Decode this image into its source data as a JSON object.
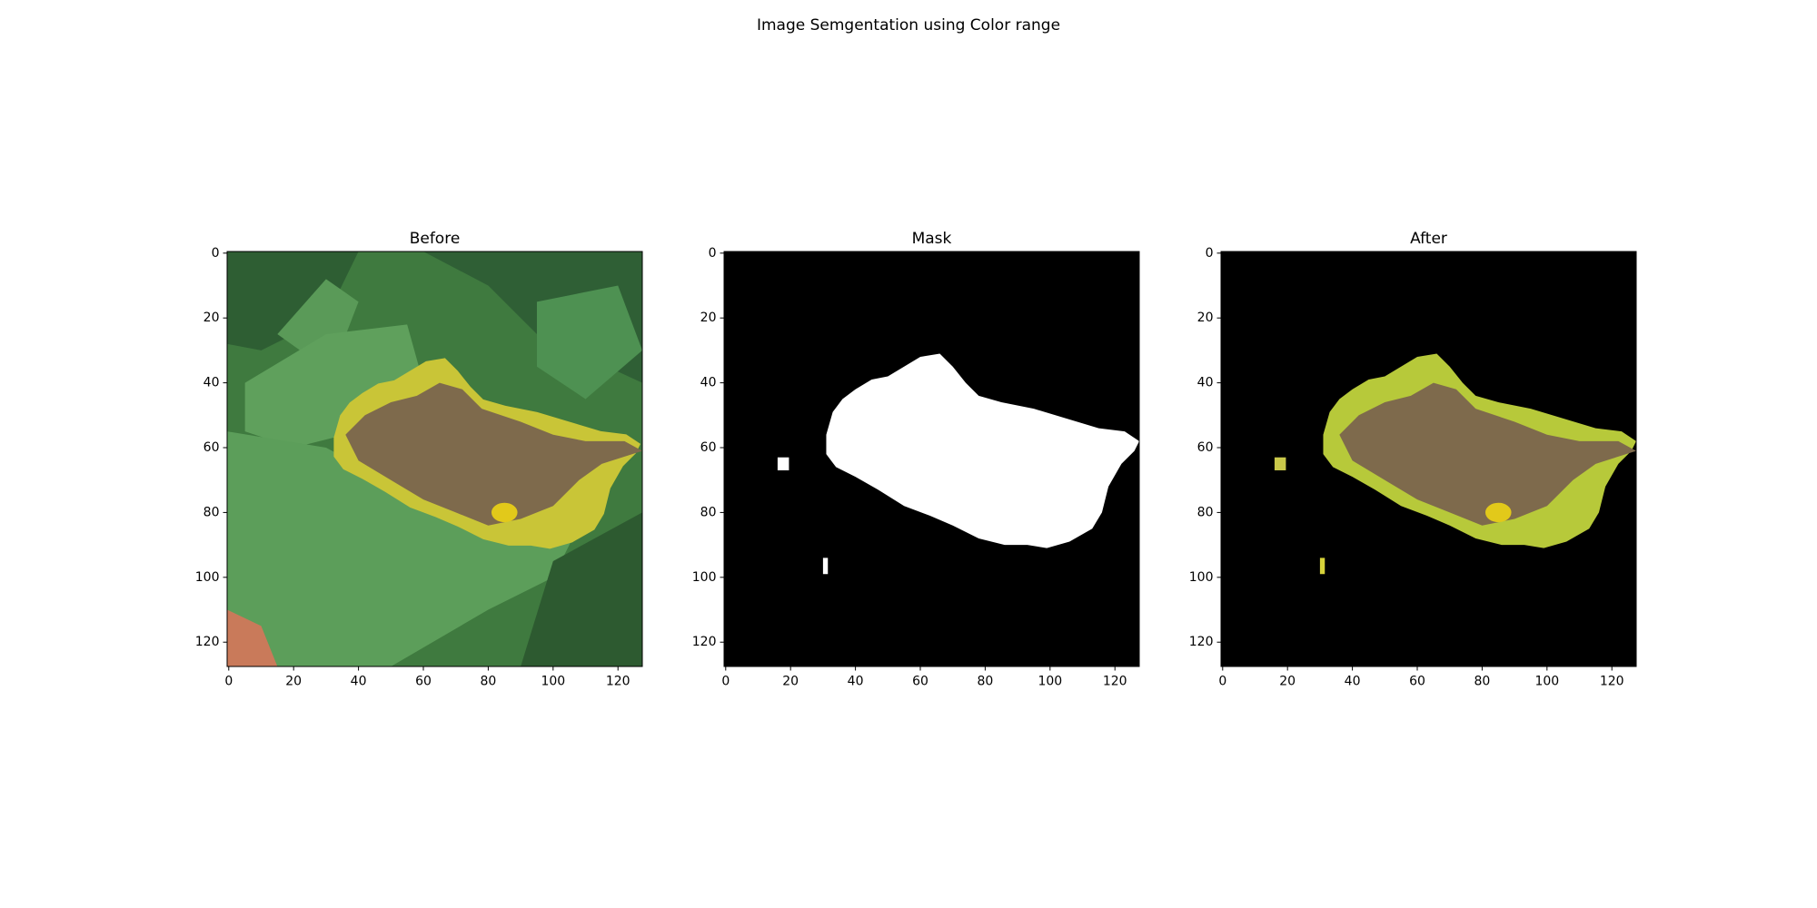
{
  "title": "Image Semgentation using Color range",
  "chart_data": [
    {
      "type": "image",
      "title": "Before",
      "xlim": [
        -0.5,
        127.5
      ],
      "ylim": [
        127.5,
        -0.5
      ],
      "xticks": [
        0,
        20,
        40,
        60,
        80,
        100,
        120
      ],
      "yticks": [
        0,
        20,
        40,
        60,
        80,
        100,
        120
      ]
    },
    {
      "type": "image",
      "title": "Mask",
      "xlim": [
        -0.5,
        127.5
      ],
      "ylim": [
        127.5,
        -0.5
      ],
      "xticks": [
        0,
        20,
        40,
        60,
        80,
        100,
        120
      ],
      "yticks": [
        0,
        20,
        40,
        60,
        80,
        100,
        120
      ]
    },
    {
      "type": "image",
      "title": "After",
      "xlim": [
        -0.5,
        127.5
      ],
      "ylim": [
        127.5,
        -0.5
      ],
      "xticks": [
        0,
        20,
        40,
        60,
        80,
        100,
        120
      ],
      "yticks": [
        0,
        20,
        40,
        60,
        80,
        100,
        120
      ]
    }
  ]
}
